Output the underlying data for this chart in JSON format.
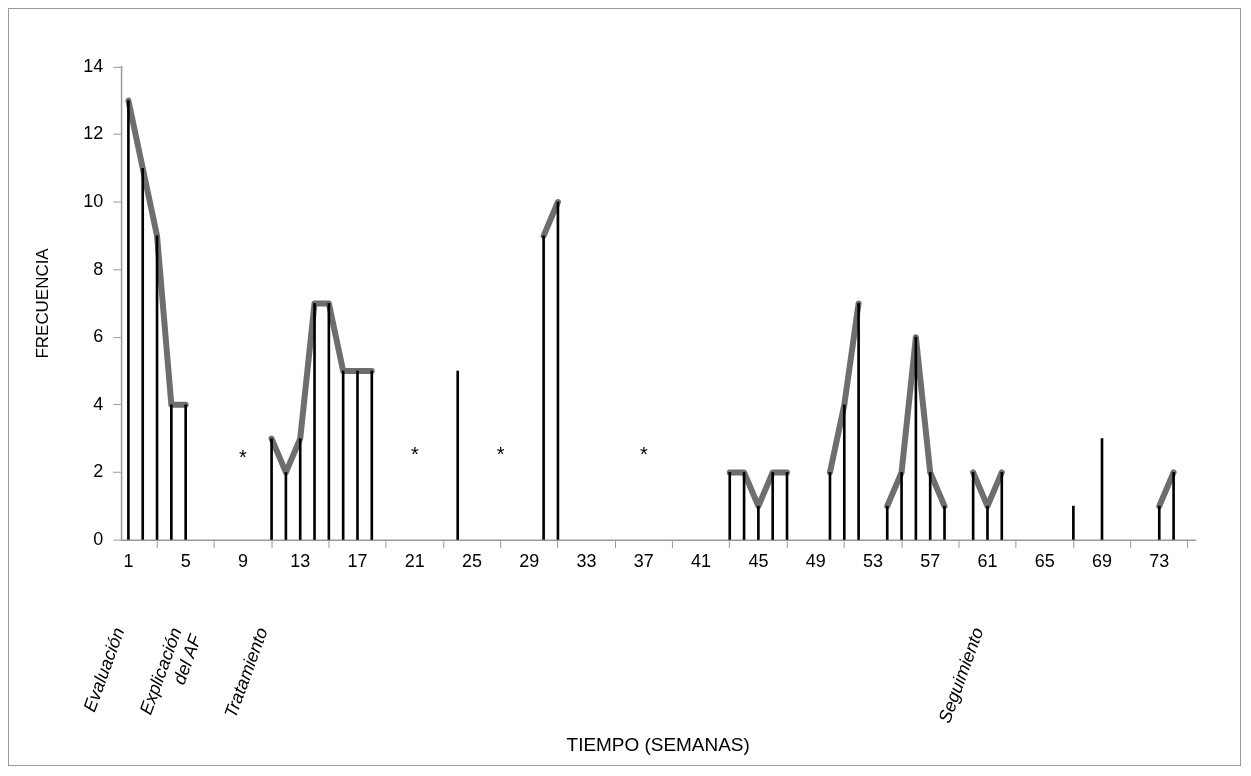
{
  "chart_data": {
    "type": "bar",
    "ylabel": "FRECUENCIA",
    "xlim": [
      0.5,
      75.5
    ],
    "xticks": [
      1,
      5,
      9,
      13,
      17,
      21,
      25,
      29,
      33,
      37,
      41,
      45,
      49,
      53,
      57,
      61,
      65,
      69,
      73
    ],
    "ylim": [
      0,
      14
    ],
    "yticks": [
      0,
      2,
      4,
      6,
      8,
      10,
      12,
      14
    ],
    "grid": false,
    "legend": false,
    "series": [
      {
        "color": "#000000",
        "x": [
          1,
          2,
          3,
          4,
          5,
          11,
          12,
          13,
          14,
          15,
          16,
          17,
          18,
          24,
          30,
          31,
          43,
          44,
          45,
          46,
          47,
          50,
          51,
          52,
          54,
          55,
          56,
          57,
          58,
          60,
          61,
          62,
          67,
          69,
          73,
          74
        ],
        "values": [
          13,
          11,
          9,
          4,
          4,
          3,
          2,
          3,
          7,
          7,
          5,
          5,
          5,
          5,
          9,
          10,
          2,
          2,
          1,
          2,
          2,
          2,
          4,
          7,
          1,
          2,
          6,
          2,
          1,
          2,
          1,
          2,
          1,
          3,
          1,
          2
        ]
      },
      {
        "type": "line",
        "color": "#6e6e6e",
        "marker": "none",
        "line_style": "solid",
        "x": [
          1,
          2,
          3,
          4,
          5,
          6,
          11,
          12,
          13,
          14,
          15,
          16,
          17,
          18,
          19,
          30,
          31,
          32,
          43,
          44,
          45,
          46,
          47,
          48,
          50,
          51,
          52,
          53,
          54,
          55,
          56,
          57,
          58,
          59,
          60,
          61,
          62,
          63,
          73,
          74
        ],
        "values": [
          13,
          11,
          9,
          4,
          4,
          null,
          3,
          2,
          3,
          7,
          7,
          5,
          5,
          5,
          null,
          9,
          10,
          null,
          2,
          2,
          1,
          2,
          2,
          null,
          2,
          4,
          7,
          null,
          1,
          2,
          6,
          2,
          1,
          null,
          2,
          1,
          2,
          null,
          1,
          2
        ]
      }
    ],
    "annotations": [
      "*",
      "*",
      "*",
      "*",
      "Evaluación",
      "Explicación del AF",
      "Tratamiento",
      "Seguimiento",
      "TIEMPO (SEMANAS)"
    ]
  }
}
